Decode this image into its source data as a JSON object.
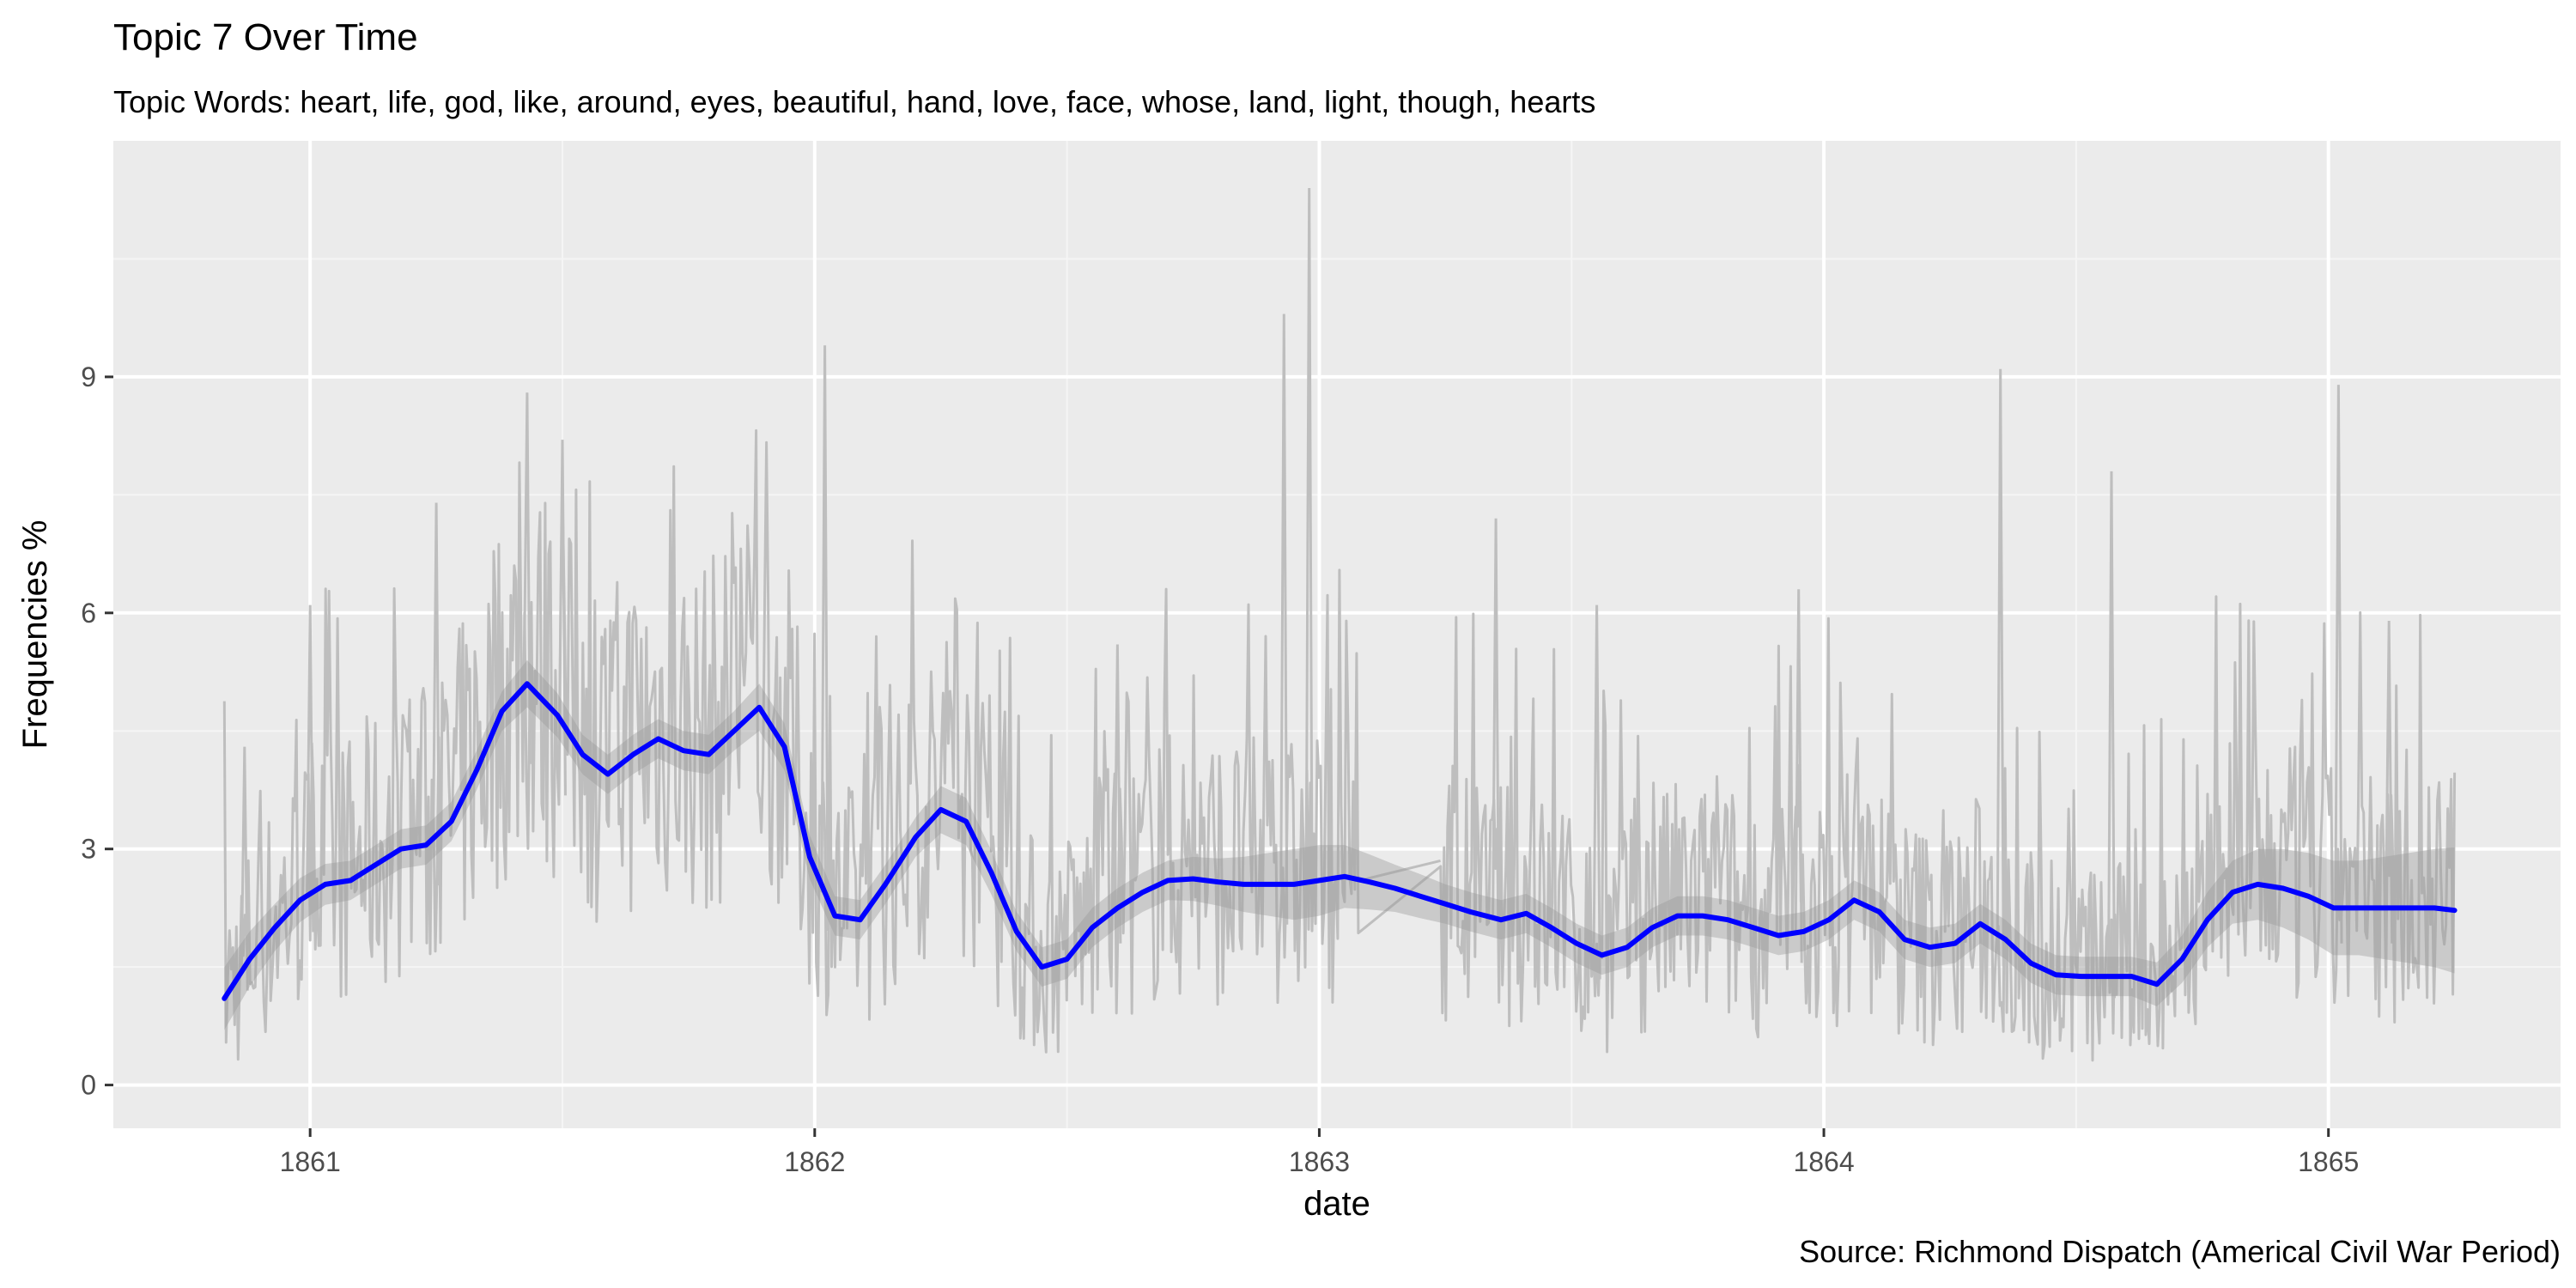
{
  "chart_data": {
    "type": "line",
    "title": "Topic 7 Over Time",
    "subtitle": "Topic Words: heart, life, god, like, around, eyes, beautiful, hand, love, face, whose, land, light, though, hearts",
    "caption": "Source: Richmond Dispatch (Americal Civil War Period)",
    "xlabel": "date",
    "ylabel": "Frequencies %",
    "xlim": [
      1860.61,
      1865.46
    ],
    "ylim": [
      -0.55,
      12.0
    ],
    "x_ticks": [
      1861,
      1862,
      1863,
      1864,
      1865
    ],
    "x_tick_labels": [
      "1861",
      "1862",
      "1863",
      "1864",
      "1865"
    ],
    "y_ticks": [
      0,
      3,
      6,
      9
    ],
    "y_tick_labels": [
      "0",
      "3",
      "6",
      "9"
    ],
    "grid": true,
    "legend": "none",
    "colors": {
      "panel_background": "#EBEBEB",
      "grid_major": "#FFFFFF",
      "grid_minor": "#F5F5F5",
      "raw_series": "#BEBEBE",
      "smooth_band": "#999999",
      "smooth_line": "#0000FF"
    },
    "raw_series_peaks": [
      {
        "x": 1860.87,
        "y": 4.3
      },
      {
        "x": 1861.0,
        "y": 6.1
      },
      {
        "x": 1861.25,
        "y": 7.4
      },
      {
        "x": 1861.43,
        "y": 8.8
      },
      {
        "x": 1861.5,
        "y": 8.2
      },
      {
        "x": 1862.02,
        "y": 9.4
      },
      {
        "x": 1862.6,
        "y": 5.6
      },
      {
        "x": 1862.93,
        "y": 9.8
      },
      {
        "x": 1862.98,
        "y": 11.4
      },
      {
        "x": 1863.35,
        "y": 7.2
      },
      {
        "x": 1863.55,
        "y": 6.1
      },
      {
        "x": 1863.95,
        "y": 6.3
      },
      {
        "x": 1864.35,
        "y": 9.1
      },
      {
        "x": 1864.57,
        "y": 7.8
      },
      {
        "x": 1865.02,
        "y": 8.9
      },
      {
        "x": 1865.12,
        "y": 5.9
      }
    ],
    "series": [
      {
        "kind": "smooth",
        "x": [
          1860.83,
          1860.88,
          1860.93,
          1860.98,
          1861.03,
          1861.08,
          1861.13,
          1861.18,
          1861.23,
          1861.28,
          1861.33,
          1861.38,
          1861.43,
          1861.49,
          1861.54,
          1861.59,
          1861.64,
          1861.69,
          1861.74,
          1861.79,
          1861.84,
          1861.89,
          1861.94,
          1861.99,
          1862.04,
          1862.09,
          1862.14,
          1862.2,
          1862.25,
          1862.3,
          1862.35,
          1862.4,
          1862.45,
          1862.5,
          1862.55,
          1862.6,
          1862.65,
          1862.7,
          1862.75,
          1862.8,
          1862.85,
          1862.9,
          1862.95,
          1863.0,
          1863.05,
          1863.1,
          1863.15,
          1863.2,
          1863.25,
          1863.3,
          1863.36,
          1863.41,
          1863.46,
          1863.51,
          1863.56,
          1863.61,
          1863.66,
          1863.71,
          1863.76,
          1863.81,
          1863.86,
          1863.91,
          1863.96,
          1864.01,
          1864.06,
          1864.11,
          1864.16,
          1864.21,
          1864.26,
          1864.31,
          1864.36,
          1864.41,
          1864.46,
          1864.51,
          1864.56,
          1864.61,
          1864.66,
          1864.71,
          1864.76,
          1864.81,
          1864.86,
          1864.91,
          1864.96,
          1865.01,
          1865.06,
          1865.11,
          1865.16,
          1865.21,
          1865.25
        ],
        "y": [
          1.1,
          1.6,
          2.0,
          2.35,
          2.55,
          2.6,
          2.8,
          3.0,
          3.05,
          3.35,
          4.0,
          4.75,
          5.1,
          4.7,
          4.2,
          3.95,
          4.2,
          4.4,
          4.25,
          4.2,
          4.5,
          4.8,
          4.3,
          2.9,
          2.15,
          2.1,
          2.55,
          3.15,
          3.5,
          3.35,
          2.7,
          1.95,
          1.5,
          1.6,
          2.0,
          2.25,
          2.45,
          2.6,
          2.62,
          2.58,
          2.55,
          2.55,
          2.55,
          2.6,
          2.65,
          2.58,
          2.5,
          2.4,
          2.3,
          2.2,
          2.1,
          2.18,
          2.0,
          1.8,
          1.65,
          1.75,
          2.0,
          2.15,
          2.15,
          2.1,
          2.0,
          1.9,
          1.95,
          2.1,
          2.35,
          2.2,
          1.85,
          1.75,
          1.8,
          2.05,
          1.85,
          1.55,
          1.4,
          1.38,
          1.38,
          1.38,
          1.28,
          1.6,
          2.1,
          2.45,
          2.55,
          2.5,
          2.4,
          2.25,
          2.25,
          2.25,
          2.25,
          2.25,
          2.22
        ],
        "band": [
          0.4,
          0.35,
          0.3,
          0.28,
          0.26,
          0.25,
          0.25,
          0.25,
          0.25,
          0.25,
          0.25,
          0.25,
          0.3,
          0.28,
          0.25,
          0.25,
          0.25,
          0.25,
          0.25,
          0.25,
          0.25,
          0.3,
          0.3,
          0.28,
          0.25,
          0.25,
          0.25,
          0.25,
          0.3,
          0.3,
          0.28,
          0.25,
          0.25,
          0.25,
          0.25,
          0.25,
          0.25,
          0.25,
          0.28,
          0.3,
          0.35,
          0.4,
          0.45,
          0.45,
          0.4,
          0.35,
          0.3,
          0.28,
          0.25,
          0.25,
          0.25,
          0.25,
          0.25,
          0.25,
          0.25,
          0.25,
          0.25,
          0.25,
          0.25,
          0.25,
          0.25,
          0.25,
          0.25,
          0.25,
          0.25,
          0.25,
          0.25,
          0.25,
          0.25,
          0.25,
          0.25,
          0.25,
          0.25,
          0.25,
          0.25,
          0.25,
          0.28,
          0.3,
          0.35,
          0.4,
          0.45,
          0.5,
          0.55,
          0.6,
          0.6,
          0.65,
          0.7,
          0.75,
          0.8
        ]
      }
    ]
  }
}
